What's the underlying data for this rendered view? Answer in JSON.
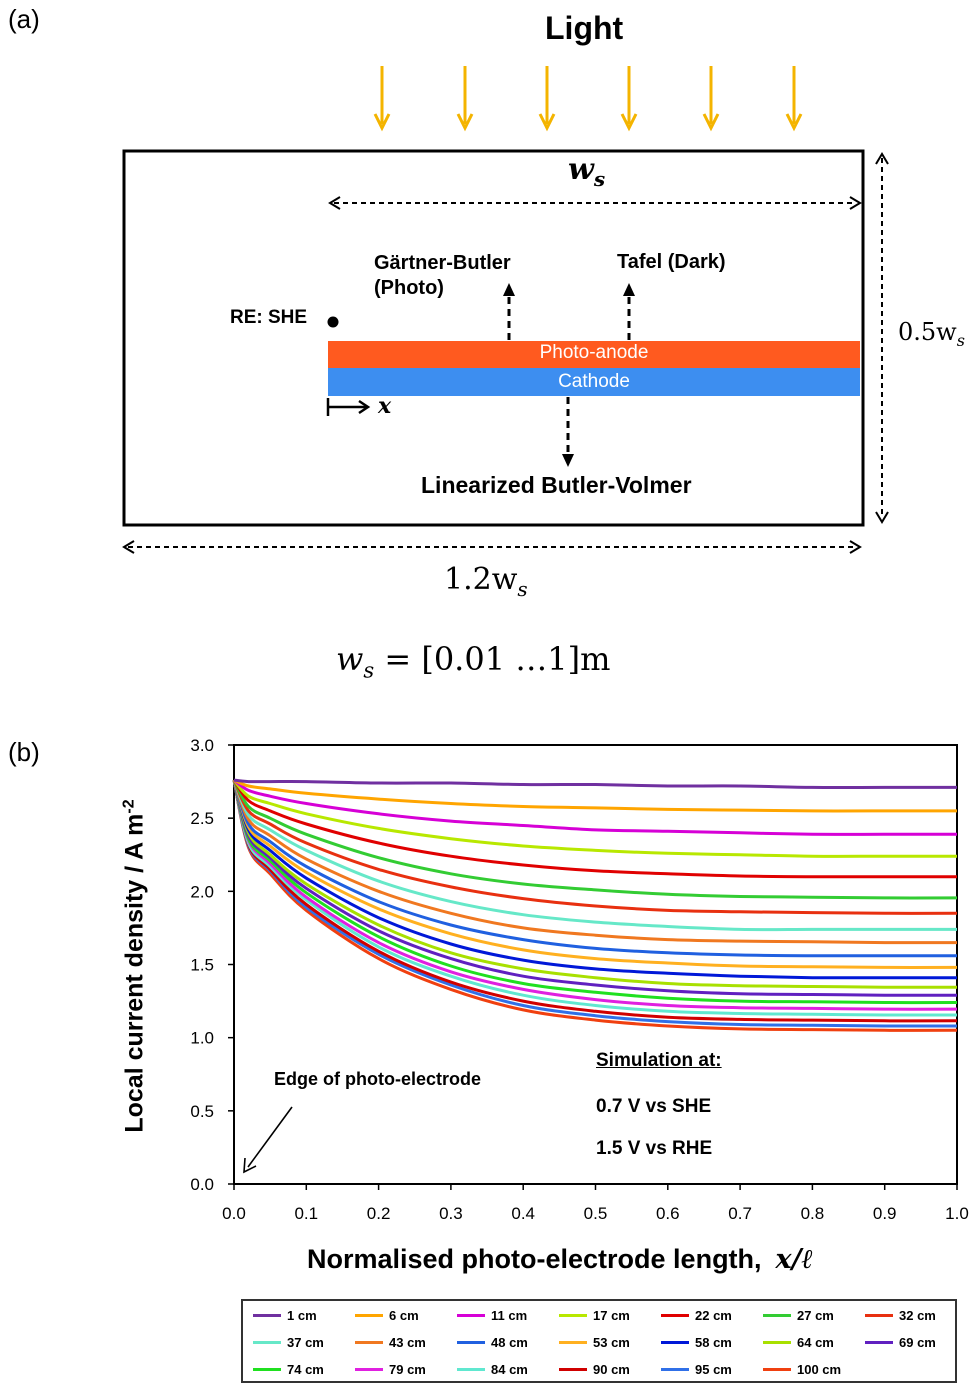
{
  "panel_a": {
    "label": "(a)",
    "light_label": "Light",
    "ws_label": "w",
    "ws_sub": "s",
    "height_label": "0.5w",
    "height_sub": "s",
    "width_label": "1.2w",
    "width_sub": "s",
    "gartner_label_1": "Gärtner-Butler",
    "gartner_label_2": "(Photo)",
    "tafel_label": "Tafel (Dark)",
    "re_label": "RE: SHE",
    "photoanode_label": "Photo-anode",
    "cathode_label": "Cathode",
    "x_label": "x",
    "butler_volmer_label": "Linearized Butler-Volmer",
    "ws_range_lhs": "w",
    "ws_range_sub": "s",
    "ws_range_rhs": " = [0.01  …1]m",
    "colors": {
      "light_arrow": "#f4b400",
      "photoanode": "#ff5a1f",
      "cathode": "#3d8ef0"
    }
  },
  "chart_data": {
    "type": "line",
    "panel_label": "(b)",
    "title": "",
    "xlabel": "Normalised photo-electrode length,",
    "xlabel_math": "x/ℓ",
    "ylabel": "Local current density / A m",
    "ylabel_sup": "-2",
    "xlim": [
      0,
      1
    ],
    "ylim": [
      0,
      3
    ],
    "x_ticks": [
      "0.0",
      "0.1",
      "0.2",
      "0.3",
      "0.4",
      "0.5",
      "0.6",
      "0.7",
      "0.8",
      "0.9",
      "1.0"
    ],
    "y_ticks": [
      "0.0",
      "0.5",
      "1.0",
      "1.5",
      "2.0",
      "2.5",
      "3.0"
    ],
    "x": [
      0,
      0.02,
      0.05,
      0.1,
      0.2,
      0.3,
      0.4,
      0.5,
      0.6,
      0.7,
      0.8,
      0.9,
      1.0
    ],
    "series": [
      {
        "name": "1 cm",
        "color": "#7030a0",
        "values": [
          2.76,
          2.75,
          2.75,
          2.75,
          2.74,
          2.74,
          2.73,
          2.73,
          2.72,
          2.72,
          2.71,
          2.71,
          2.71
        ]
      },
      {
        "name": "6 cm",
        "color": "#ffa500",
        "values": [
          2.76,
          2.72,
          2.7,
          2.67,
          2.63,
          2.6,
          2.58,
          2.57,
          2.56,
          2.555,
          2.55,
          2.55,
          2.55
        ]
      },
      {
        "name": "11 cm",
        "color": "#d600d6",
        "values": [
          2.76,
          2.69,
          2.65,
          2.6,
          2.53,
          2.48,
          2.45,
          2.42,
          2.41,
          2.4,
          2.39,
          2.39,
          2.39
        ]
      },
      {
        "name": "17 cm",
        "color": "#b8e800",
        "values": [
          2.76,
          2.65,
          2.6,
          2.53,
          2.43,
          2.36,
          2.31,
          2.28,
          2.26,
          2.25,
          2.24,
          2.24,
          2.24
        ]
      },
      {
        "name": "22 cm",
        "color": "#e00000",
        "values": [
          2.76,
          2.62,
          2.55,
          2.46,
          2.33,
          2.24,
          2.18,
          2.14,
          2.12,
          2.105,
          2.1,
          2.1,
          2.1
        ]
      },
      {
        "name": "27 cm",
        "color": "#33cc33",
        "values": [
          2.76,
          2.58,
          2.5,
          2.39,
          2.23,
          2.12,
          2.05,
          2.01,
          1.98,
          1.965,
          1.96,
          1.955,
          1.955
        ]
      },
      {
        "name": "32 cm",
        "color": "#e83010",
        "values": [
          2.76,
          2.55,
          2.46,
          2.33,
          2.15,
          2.03,
          1.95,
          1.9,
          1.87,
          1.86,
          1.855,
          1.85,
          1.85
        ]
      },
      {
        "name": "37 cm",
        "color": "#66e8c8",
        "values": [
          2.76,
          2.52,
          2.42,
          2.28,
          2.07,
          1.93,
          1.84,
          1.79,
          1.76,
          1.74,
          1.74,
          1.74,
          1.74
        ]
      },
      {
        "name": "43 cm",
        "color": "#f07820",
        "values": [
          2.76,
          2.49,
          2.38,
          2.22,
          2.0,
          1.85,
          1.75,
          1.7,
          1.67,
          1.66,
          1.655,
          1.65,
          1.65
        ]
      },
      {
        "name": "48 cm",
        "color": "#2060e0",
        "values": [
          2.76,
          2.46,
          2.34,
          2.17,
          1.93,
          1.77,
          1.67,
          1.61,
          1.58,
          1.565,
          1.56,
          1.56,
          1.56
        ]
      },
      {
        "name": "53 cm",
        "color": "#ffb020",
        "values": [
          2.76,
          2.44,
          2.31,
          2.13,
          1.88,
          1.71,
          1.6,
          1.54,
          1.51,
          1.49,
          1.485,
          1.48,
          1.48
        ]
      },
      {
        "name": "58 cm",
        "color": "#0018d8",
        "values": [
          2.76,
          2.42,
          2.28,
          2.09,
          1.82,
          1.64,
          1.53,
          1.47,
          1.44,
          1.42,
          1.41,
          1.41,
          1.41
        ]
      },
      {
        "name": "64 cm",
        "color": "#a8e000",
        "values": [
          2.76,
          2.4,
          2.25,
          2.05,
          1.77,
          1.58,
          1.47,
          1.41,
          1.37,
          1.355,
          1.35,
          1.345,
          1.345
        ]
      },
      {
        "name": "69 cm",
        "color": "#6020c0",
        "values": [
          2.76,
          2.38,
          2.23,
          2.02,
          1.73,
          1.54,
          1.42,
          1.36,
          1.32,
          1.3,
          1.295,
          1.29,
          1.29
        ]
      },
      {
        "name": "74 cm",
        "color": "#20e020",
        "values": [
          2.76,
          2.36,
          2.21,
          1.99,
          1.69,
          1.49,
          1.37,
          1.31,
          1.27,
          1.25,
          1.245,
          1.24,
          1.24
        ]
      },
      {
        "name": "79 cm",
        "color": "#e020e0",
        "values": [
          2.76,
          2.35,
          2.19,
          1.96,
          1.65,
          1.45,
          1.33,
          1.26,
          1.22,
          1.205,
          1.2,
          1.195,
          1.195
        ]
      },
      {
        "name": "84 cm",
        "color": "#60e8d0",
        "values": [
          2.76,
          2.33,
          2.17,
          1.94,
          1.62,
          1.42,
          1.29,
          1.22,
          1.18,
          1.165,
          1.16,
          1.155,
          1.155
        ]
      },
      {
        "name": "90 cm",
        "color": "#d00000",
        "values": [
          2.76,
          2.32,
          2.15,
          1.91,
          1.59,
          1.38,
          1.25,
          1.18,
          1.14,
          1.125,
          1.12,
          1.115,
          1.115
        ]
      },
      {
        "name": "95 cm",
        "color": "#3070e8",
        "values": [
          2.76,
          2.31,
          2.14,
          1.89,
          1.57,
          1.36,
          1.22,
          1.15,
          1.11,
          1.09,
          1.085,
          1.08,
          1.08
        ]
      },
      {
        "name": "100 cm",
        "color": "#f04010",
        "values": [
          2.76,
          2.3,
          2.12,
          1.87,
          1.54,
          1.33,
          1.19,
          1.12,
          1.08,
          1.06,
          1.055,
          1.05,
          1.05
        ]
      }
    ],
    "annotations": {
      "edge": "Edge of photo-electrode",
      "sim_title": "Simulation at:",
      "sim_line1": "0.7 V vs SHE",
      "sim_line2": "1.5 V vs RHE"
    },
    "legend_position": "bottom"
  }
}
